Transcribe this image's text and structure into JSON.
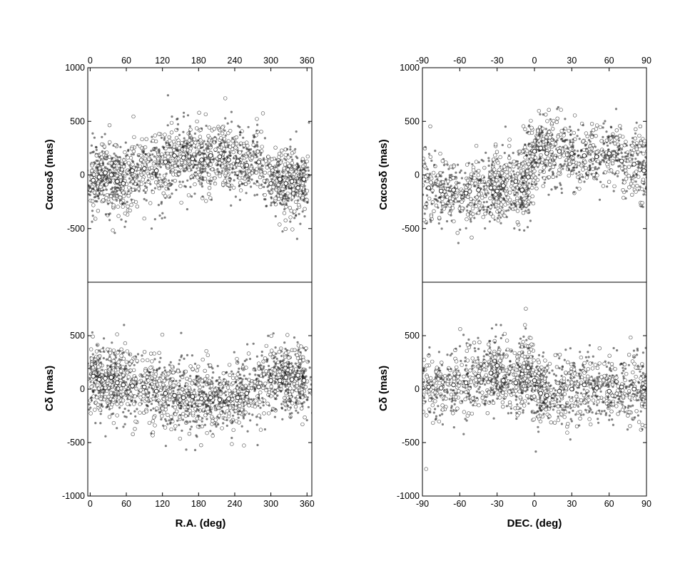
{
  "figure": {
    "left_column": {
      "x_axis_label": "R.A. (deg)",
      "x_ticks": [
        0,
        60,
        120,
        180,
        240,
        300,
        360
      ],
      "top_ticks": [
        0,
        60,
        120,
        180,
        240,
        300,
        360
      ]
    },
    "right_column": {
      "x_axis_label": "DEC. (deg)",
      "x_ticks": [
        -90,
        -60,
        -30,
        0,
        30,
        60,
        90
      ],
      "top_ticks": [
        -90,
        -60,
        -30,
        0,
        30,
        60,
        90
      ]
    },
    "upper_row": {
      "y_axis_label": "Cαcosδ (mas)",
      "y_ticks": [
        1000,
        500,
        0,
        -500
      ]
    },
    "lower_row": {
      "y_axis_label": "Cδ (mas)",
      "y_ticks": [
        500,
        0,
        -500,
        -1000
      ]
    }
  },
  "chart_data": [
    {
      "type": "scatter",
      "panel": "upper-left",
      "xlabel": "R.A. (deg)",
      "ylabel": "Cαcosδ (mas)",
      "xlim": [
        -4,
        368
      ],
      "ylim": [
        -1000,
        1000
      ],
      "series": [
        {
          "values_description_free": true,
          "x": [
            5,
            15,
            25,
            35,
            45,
            55,
            70,
            90,
            110,
            125,
            140,
            155,
            170,
            185,
            200,
            215,
            230,
            245,
            260,
            280,
            300,
            315,
            325,
            335,
            345,
            355
          ],
          "y": [
            -50,
            -20,
            20,
            0,
            -60,
            -80,
            40,
            60,
            40,
            120,
            180,
            160,
            150,
            140,
            180,
            170,
            140,
            130,
            90,
            120,
            -80,
            -40,
            -80,
            -60,
            -120,
            -40
          ]
        }
      ]
    },
    {
      "type": "scatter",
      "panel": "upper-right",
      "xlabel": "DEC. (deg)",
      "ylabel": "Cαcosδ (mas)",
      "xlim": [
        -90,
        90
      ],
      "ylim": [
        -1000,
        1000
      ],
      "series": [
        {
          "x": [
            -85,
            -75,
            -65,
            -55,
            -45,
            -35,
            -30,
            -25,
            -15,
            -10,
            -5,
            0,
            5,
            10,
            20,
            30,
            40,
            50,
            60,
            70,
            80,
            88
          ],
          "y": [
            -120,
            -150,
            -140,
            -170,
            -140,
            -120,
            -150,
            -100,
            -60,
            -140,
            -20,
            220,
            250,
            200,
            220,
            200,
            180,
            170,
            200,
            130,
            100,
            40
          ]
        }
      ]
    },
    {
      "type": "scatter",
      "panel": "lower-left",
      "xlabel": "R.A. (deg)",
      "ylabel": "Cδ (mas)",
      "xlim": [
        -4,
        368
      ],
      "ylim": [
        -1000,
        1000
      ],
      "series": [
        {
          "x": [
            5,
            15,
            25,
            35,
            45,
            55,
            70,
            90,
            110,
            125,
            140,
            155,
            170,
            185,
            200,
            215,
            230,
            245,
            260,
            280,
            300,
            315,
            325,
            335,
            345,
            355
          ],
          "y": [
            120,
            90,
            100,
            110,
            60,
            40,
            30,
            20,
            -20,
            -40,
            -60,
            -80,
            -70,
            -90,
            -80,
            -100,
            -90,
            -80,
            -40,
            20,
            80,
            80,
            110,
            90,
            130,
            80
          ]
        }
      ]
    },
    {
      "type": "scatter",
      "panel": "lower-right",
      "xlabel": "DEC. (deg)",
      "ylabel": "Cδ (mas)",
      "xlim": [
        -90,
        90
      ],
      "ylim": [
        -1000,
        1000
      ],
      "series": [
        {
          "x": [
            -85,
            -75,
            -65,
            -55,
            -45,
            -35,
            -30,
            -25,
            -15,
            -10,
            -5,
            0,
            5,
            10,
            20,
            30,
            40,
            50,
            60,
            70,
            80,
            88
          ],
          "y": [
            20,
            10,
            40,
            60,
            120,
            150,
            220,
            80,
            60,
            140,
            200,
            80,
            -40,
            -60,
            -20,
            0,
            40,
            10,
            -20,
            20,
            0,
            10
          ]
        }
      ]
    }
  ]
}
